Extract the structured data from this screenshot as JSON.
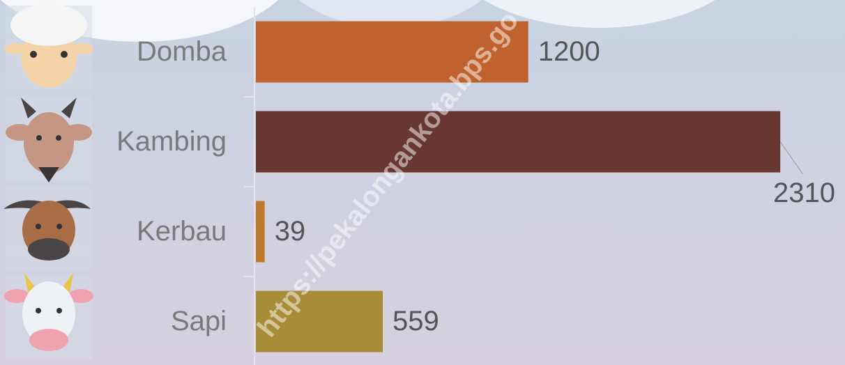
{
  "chart_data": {
    "type": "bar",
    "orientation": "horizontal",
    "categories": [
      "Domba",
      "Kambing",
      "Kerbau",
      "Sapi"
    ],
    "values": [
      1200,
      2310,
      39,
      559
    ],
    "colors": [
      "#c0622d",
      "#673730",
      "#c07a30",
      "#a88c38"
    ],
    "xlim": [
      0,
      2500
    ],
    "watermark": "https://pekalongankota.bps.go"
  }
}
